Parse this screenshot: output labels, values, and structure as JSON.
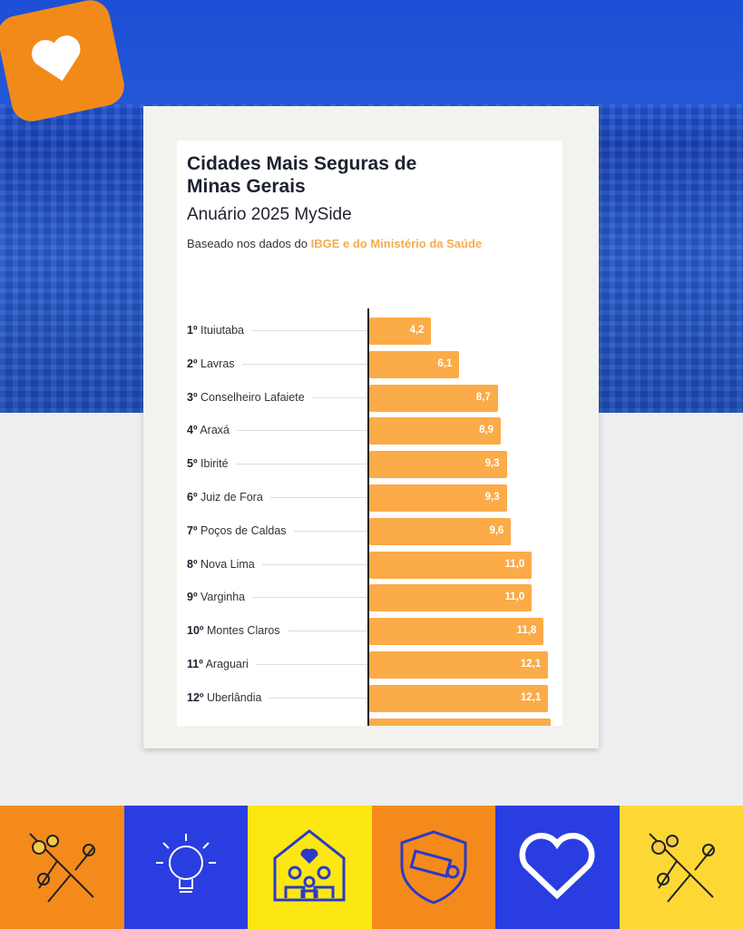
{
  "chart_data": {
    "type": "bar",
    "orientation": "horizontal",
    "title": "Cidades Mais Seguras de Minas Gerais",
    "subtitle": "Anuário 2025 MySide",
    "source_prefix": "Baseado nos dados do ",
    "source_highlight": "IBGE e do Ministério da Saúde",
    "categories": [
      {
        "rank": "1º",
        "city": "Ituiutaba",
        "label": "4,2"
      },
      {
        "rank": "2º",
        "city": "Lavras",
        "label": "6,1"
      },
      {
        "rank": "3º",
        "city": "Conselheiro Lafaiete",
        "label": "8,7"
      },
      {
        "rank": "4º",
        "city": "Araxá",
        "label": "8,9"
      },
      {
        "rank": "5º",
        "city": "Ibirité",
        "label": "9,3"
      },
      {
        "rank": "6º",
        "city": "Juiz de Fora",
        "label": "9,3"
      },
      {
        "rank": "7º",
        "city": "Poços de Caldas",
        "label": "9,6"
      },
      {
        "rank": "8º",
        "city": "Nova Lima",
        "label": "11,0"
      },
      {
        "rank": "9º",
        "city": "Varginha",
        "label": "11,0"
      },
      {
        "rank": "10º",
        "city": "Montes Claros",
        "label": "11,8"
      },
      {
        "rank": "11º",
        "city": "Araguari",
        "label": "12,1"
      },
      {
        "rank": "12º",
        "city": "Uberlândia",
        "label": "12,1"
      },
      {
        "rank": "",
        "city": "",
        "label": ""
      }
    ],
    "values": [
      4.2,
      6.1,
      8.7,
      8.9,
      9.3,
      9.3,
      9.6,
      11.0,
      11.0,
      11.8,
      12.1,
      12.1,
      12.3
    ],
    "xlim": [
      0,
      12.5
    ],
    "bar_color": "#fbab48"
  },
  "icons": [
    "flower-branch-icon",
    "lightbulb-icon",
    "family-house-icon",
    "security-camera-icon",
    "heart-icon",
    "flower-branch-icon"
  ],
  "tile_colors": [
    "#f58a1c",
    "#2a3de0",
    "#fde711",
    "#f58a1c",
    "#2a3de0",
    "#fdd835"
  ]
}
